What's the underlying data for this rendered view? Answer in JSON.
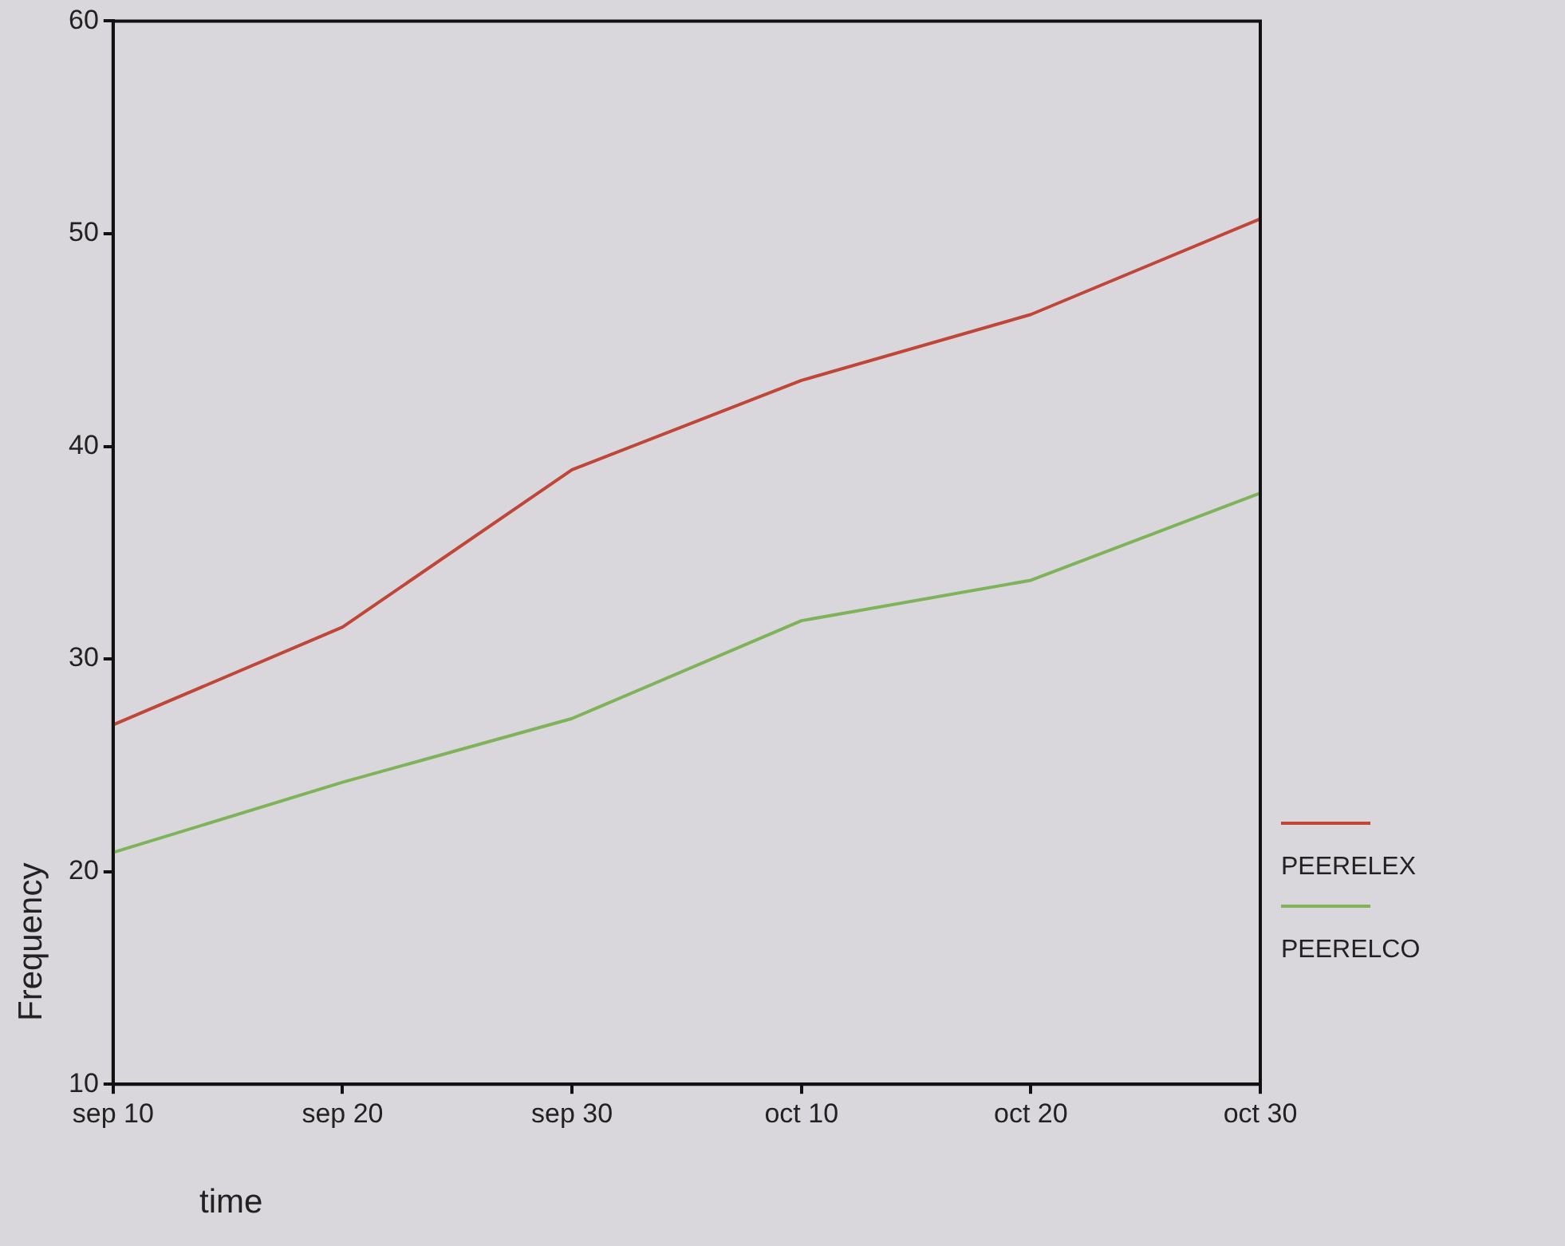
{
  "chart_data": {
    "type": "line",
    "xlabel": "time",
    "ylabel": "Frequency",
    "categories": [
      "sep 10",
      "sep 20",
      "sep 30",
      "oct 10",
      "oct 20",
      "oct 30"
    ],
    "series": [
      {
        "name": "PEERELEX",
        "color": "#c0463a",
        "values": [
          26.9,
          31.5,
          38.9,
          43.1,
          46.2,
          50.7
        ]
      },
      {
        "name": "PEERELCO",
        "color": "#7fb35a",
        "values": [
          20.9,
          24.2,
          27.2,
          31.8,
          33.7,
          37.8
        ]
      }
    ],
    "ylim": [
      10,
      60
    ],
    "yticks": [
      10,
      20,
      30,
      40,
      50,
      60
    ],
    "grid": false,
    "legend": "right",
    "marker": "none",
    "line_style": "solid"
  }
}
